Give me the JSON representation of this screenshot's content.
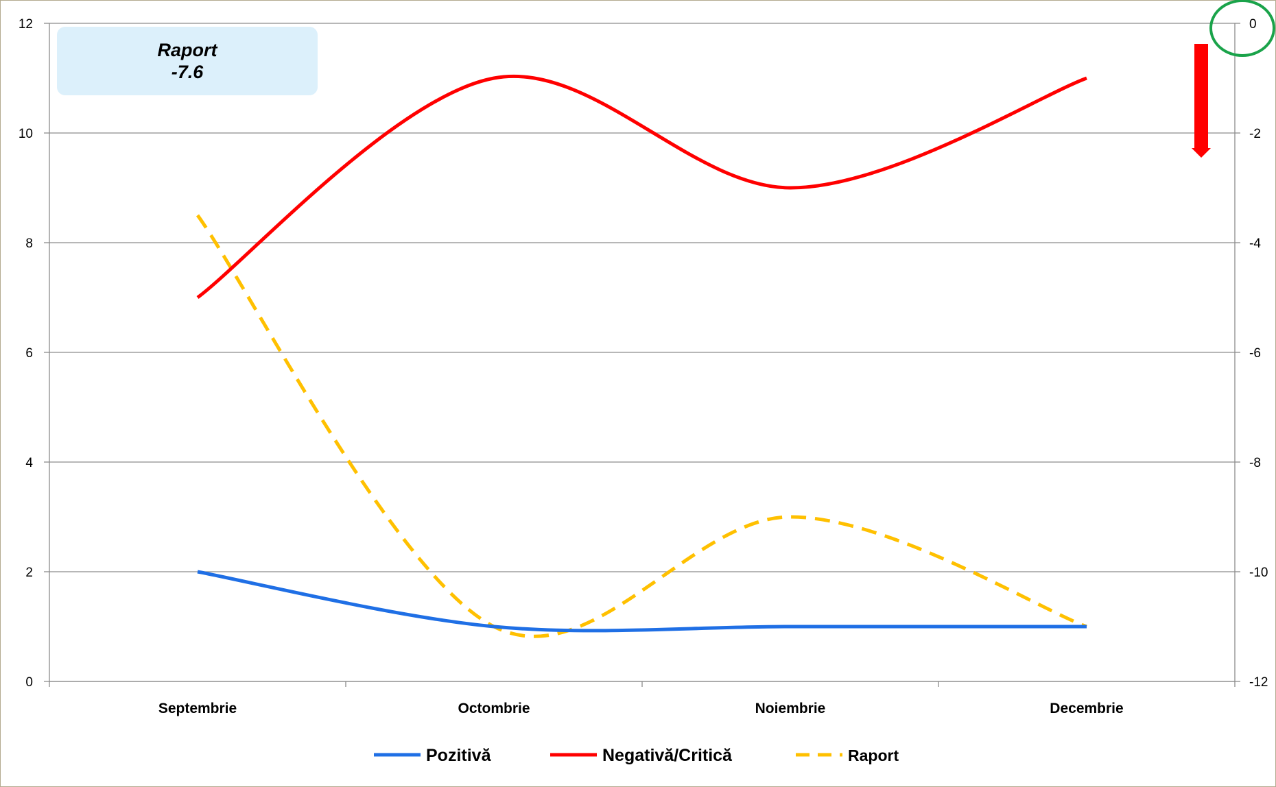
{
  "chart_data": {
    "type": "line",
    "categories": [
      "Septembrie",
      "Octombrie",
      "Noiembrie",
      "Decembrie"
    ],
    "series": [
      {
        "name": "Pozitivă",
        "axis": "left",
        "color": "#1f6fe5",
        "style": "solid",
        "values": [
          2,
          1,
          1,
          1
        ]
      },
      {
        "name": "Negativă/Critică",
        "axis": "left",
        "color": "#ff0000",
        "style": "solid",
        "values": [
          7,
          11,
          9,
          11
        ]
      },
      {
        "name": "Raport",
        "axis": "right",
        "color": "#ffc000",
        "style": "dashed",
        "values": [
          -3.5,
          -11,
          -9,
          -11
        ]
      }
    ],
    "left_axis": {
      "min": 0,
      "max": 12,
      "ticks": [
        "0",
        "2",
        "4",
        "6",
        "8",
        "10",
        "12"
      ]
    },
    "right_axis": {
      "min": -12,
      "max": 0,
      "ticks": [
        "0",
        "-2",
        "-4",
        "-6",
        "-8",
        "-10",
        "-12"
      ]
    },
    "grid": true,
    "legend_position": "bottom",
    "annotation": {
      "label": "Raport",
      "value": "-7.6"
    },
    "arrow_color": "#ff0000",
    "circle_color": "#1aa34a"
  }
}
